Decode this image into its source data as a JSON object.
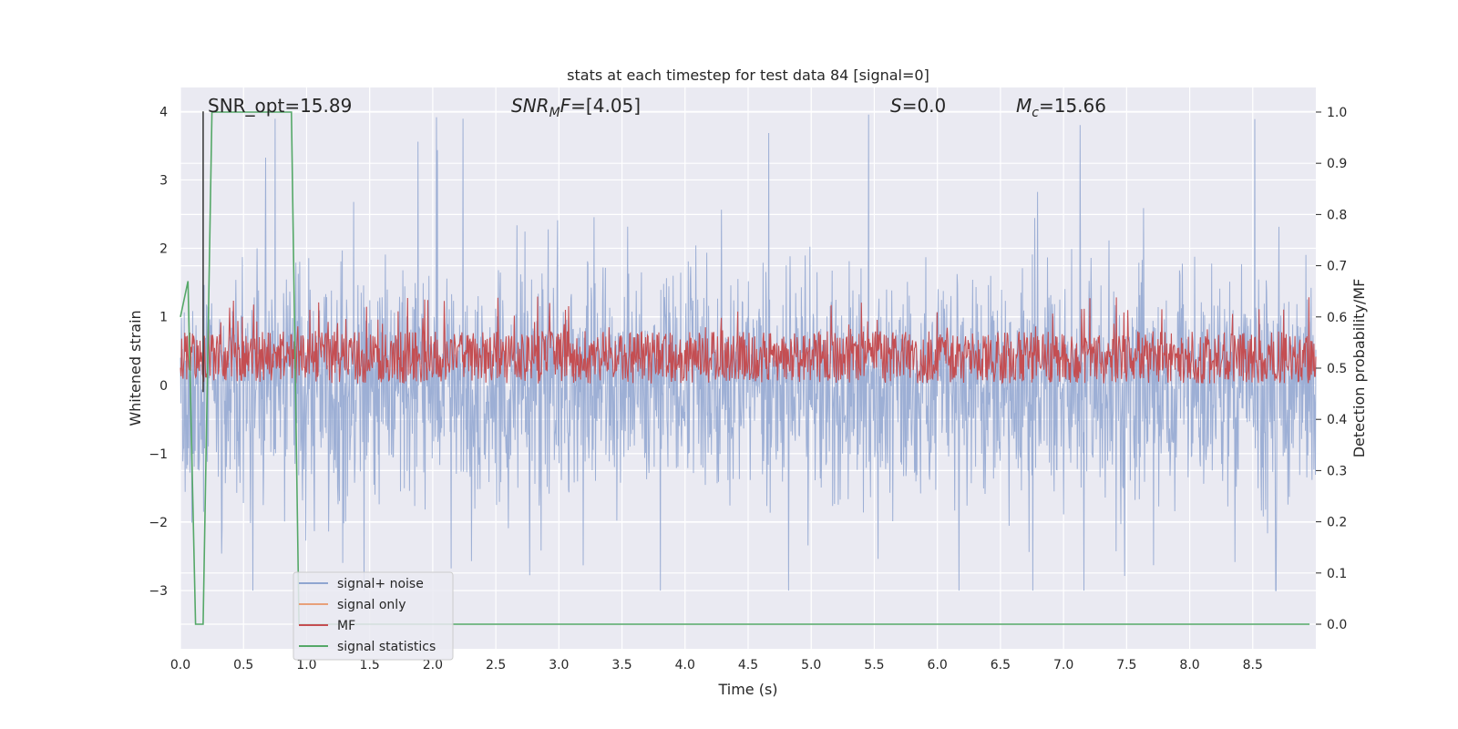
{
  "chart_data": {
    "type": "line",
    "title": "stats at each timestep for test data 84 [signal=0]",
    "xlabel": "Time (s)",
    "ylabel": "Whitened strain",
    "y2label": "Detection probability/MF",
    "xlim": [
      0.0,
      9.0
    ],
    "ylim": [
      -3.85,
      4.35
    ],
    "y2lim": [
      -0.048,
      1.048
    ],
    "xticks": [
      "0.0",
      "0.5",
      "1.0",
      "1.5",
      "2.0",
      "2.5",
      "3.0",
      "3.5",
      "4.0",
      "4.5",
      "5.0",
      "5.5",
      "6.0",
      "6.5",
      "7.0",
      "7.5",
      "8.0",
      "8.5"
    ],
    "yticks": [
      "4",
      "3",
      "2",
      "1",
      "0",
      "−1",
      "−2",
      "−3"
    ],
    "y2ticks": [
      "1.0",
      "0.9",
      "0.8",
      "0.7",
      "0.6",
      "0.5",
      "0.4",
      "0.3",
      "0.2",
      "0.1",
      "0.0"
    ],
    "grid": true,
    "legend_position": "lower-left",
    "annotations": [
      {
        "text": "SNR_opt=15.89"
      },
      {
        "prefix": "SNR",
        "sub": "M",
        "suffix": "F=[4.05]"
      },
      {
        "prefix": "S",
        "suffix": "=0.0"
      },
      {
        "prefix": "M",
        "sub": "c",
        "suffix": "=15.66"
      }
    ],
    "vertical_line_x": 0.18,
    "series": [
      {
        "name": "signal+ noise",
        "color": "#8fa5d0",
        "axis": "left",
        "style": "noise",
        "amplitude_range": [
          -3.0,
          4.0
        ]
      },
      {
        "name": "signal only",
        "color": "#e8a07a",
        "axis": "left",
        "values": []
      },
      {
        "name": "MF",
        "color": "#c44e52",
        "axis": "right",
        "style": "noise",
        "range": [
          0.47,
          0.64
        ]
      },
      {
        "name": "signal statistics",
        "color": "#55a868",
        "axis": "right",
        "x": [
          0.0,
          0.06,
          0.12,
          0.18,
          0.25,
          0.88,
          0.94,
          1.0,
          7.8,
          8.2,
          8.95
        ],
        "values": [
          0.6,
          0.67,
          0.0,
          0.0,
          1.0,
          1.0,
          0.0,
          0.0,
          0.0,
          0.0,
          0.0
        ]
      }
    ]
  }
}
